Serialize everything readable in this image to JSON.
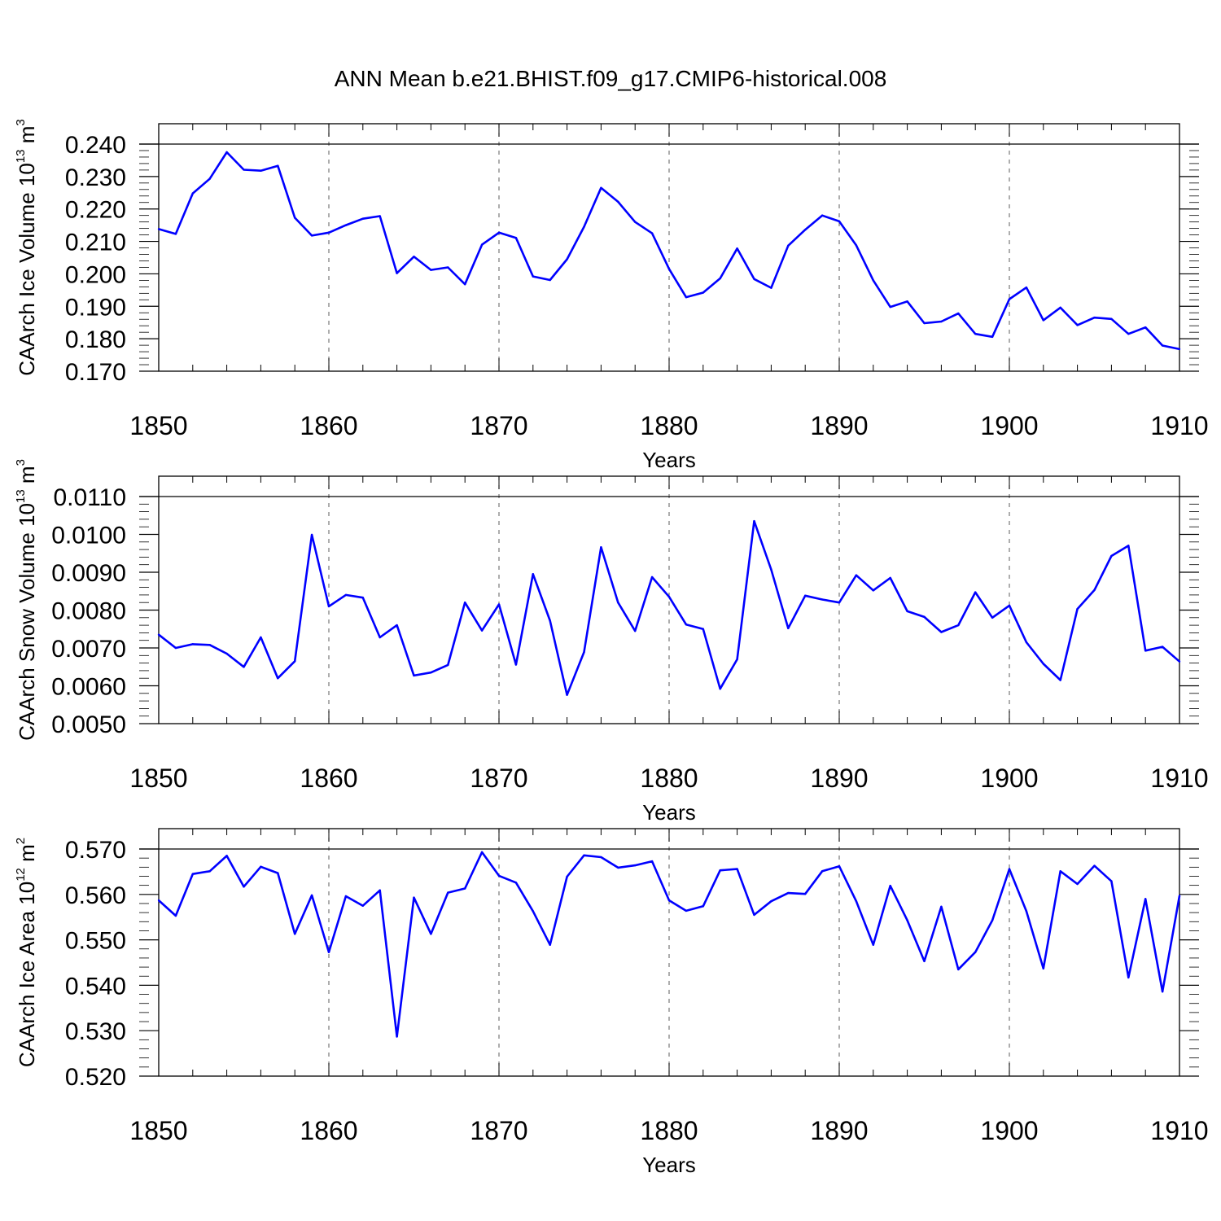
{
  "title": "ANN Mean b.e21.BHIST.f09_g17.CMIP6-historical.008",
  "line_color": "#0000ff",
  "chart_data": [
    {
      "type": "line",
      "ylabel": {
        "text": "CAArch Ice Volume 10",
        "exp": "13",
        "unit": " m",
        "unit_exp": "3"
      },
      "xlabel": "Years",
      "xlim": [
        1850,
        1910
      ],
      "ylim": [
        0.17,
        0.24
      ],
      "xticks": [
        "1850",
        "1860",
        "1870",
        "1880",
        "1890",
        "1900",
        "1910"
      ],
      "yticks": [
        "0.170",
        "0.180",
        "0.190",
        "0.200",
        "0.210",
        "0.220",
        "0.230",
        "0.240"
      ],
      "grid": "vertical dashed at major x ticks",
      "x_start": 1850,
      "values": [
        0.2138,
        0.2123,
        0.2248,
        0.2293,
        0.2375,
        0.2321,
        0.2318,
        0.2333,
        0.2173,
        0.2118,
        0.2127,
        0.215,
        0.217,
        0.2178,
        0.2002,
        0.2053,
        0.2012,
        0.202,
        0.1968,
        0.209,
        0.2127,
        0.2111,
        0.1992,
        0.1981,
        0.2045,
        0.2145,
        0.2265,
        0.2222,
        0.216,
        0.2125,
        0.2015,
        0.1928,
        0.1942,
        0.1986,
        0.2078,
        0.1984,
        0.1957,
        0.2087,
        0.2136,
        0.218,
        0.2162,
        0.2088,
        0.198,
        0.1898,
        0.1915,
        0.1848,
        0.1853,
        0.1878,
        0.1815,
        0.1806,
        0.1922,
        0.1958,
        0.1857,
        0.1896,
        0.1842,
        0.1865,
        0.1861,
        0.1815,
        0.1835,
        0.1779,
        0.1768
      ]
    },
    {
      "type": "line",
      "ylabel": {
        "text": "CAArch Snow Volume 10",
        "exp": "13",
        "unit": " m",
        "unit_exp": "3"
      },
      "xlabel": "Years",
      "xlim": [
        1850,
        1910
      ],
      "ylim": [
        0.005,
        0.011
      ],
      "xticks": [
        "1850",
        "1860",
        "1870",
        "1880",
        "1890",
        "1900",
        "1910"
      ],
      "yticks": [
        "0.0050",
        "0.0060",
        "0.0070",
        "0.0080",
        "0.0090",
        "0.0100",
        "0.0110"
      ],
      "grid": "vertical dashed at major x ticks",
      "x_start": 1850,
      "values": [
        0.00735,
        0.007,
        0.0071,
        0.00708,
        0.00685,
        0.0065,
        0.00728,
        0.0062,
        0.00665,
        0.00999,
        0.0081,
        0.0084,
        0.00833,
        0.00728,
        0.0076,
        0.00627,
        0.00635,
        0.00655,
        0.0082,
        0.00746,
        0.00815,
        0.00656,
        0.00895,
        0.00772,
        0.00576,
        0.00689,
        0.00966,
        0.0082,
        0.00745,
        0.00887,
        0.00835,
        0.00762,
        0.0075,
        0.00592,
        0.0067,
        0.01035,
        0.00907,
        0.00752,
        0.00838,
        0.00828,
        0.0082,
        0.00892,
        0.00852,
        0.00885,
        0.00797,
        0.00782,
        0.00742,
        0.0076,
        0.00847,
        0.0078,
        0.00812,
        0.00715,
        0.00658,
        0.00615,
        0.00803,
        0.00853,
        0.00943,
        0.0097,
        0.00693,
        0.00703,
        0.00664
      ]
    },
    {
      "type": "line",
      "ylabel": {
        "text": "CAArch Ice Area 10",
        "exp": "12",
        "unit": " m",
        "unit_exp": "2"
      },
      "xlabel": "Years",
      "xlim": [
        1850,
        1910
      ],
      "ylim": [
        0.52,
        0.57
      ],
      "xticks": [
        "1850",
        "1860",
        "1870",
        "1880",
        "1890",
        "1900",
        "1910"
      ],
      "yticks": [
        "0.520",
        "0.530",
        "0.540",
        "0.550",
        "0.560",
        "0.570"
      ],
      "grid": "vertical dashed at major x ticks",
      "x_start": 1850,
      "values": [
        0.5587,
        0.5553,
        0.5645,
        0.5651,
        0.5685,
        0.5617,
        0.5661,
        0.5647,
        0.5513,
        0.5598,
        0.5473,
        0.5596,
        0.5575,
        0.5609,
        0.5287,
        0.5593,
        0.5513,
        0.5604,
        0.5613,
        0.5693,
        0.5641,
        0.5626,
        0.5563,
        0.5489,
        0.5639,
        0.5686,
        0.5682,
        0.5659,
        0.5664,
        0.5673,
        0.5587,
        0.5564,
        0.5574,
        0.5653,
        0.5656,
        0.5555,
        0.5585,
        0.5603,
        0.5601,
        0.5651,
        0.5662,
        0.5585,
        0.5489,
        0.5619,
        0.5543,
        0.5453,
        0.5573,
        0.5435,
        0.5473,
        0.5543,
        0.5656,
        0.5563,
        0.5437,
        0.5651,
        0.5623,
        0.5663,
        0.5629,
        0.5417,
        0.559,
        0.5386,
        0.5597
      ]
    }
  ]
}
